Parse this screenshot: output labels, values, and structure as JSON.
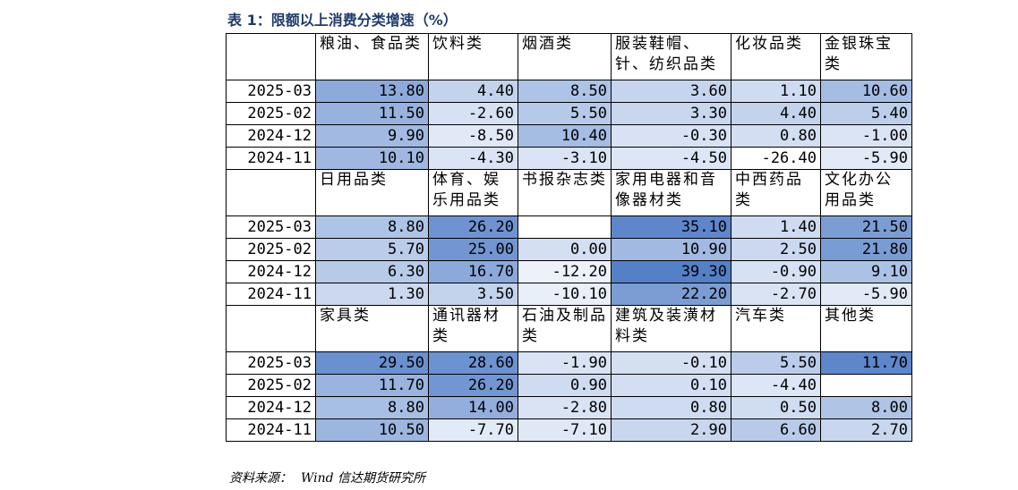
{
  "title": "表 1：限额以上消费分类增速（%）",
  "source": {
    "label": "资料来源：",
    "name": "Wind 信达期货研究所"
  },
  "groups": [
    {
      "headers": [
        "粮油、食品类",
        "饮料类",
        "烟酒类",
        "服装鞋帽、针、纺织品类",
        "化妆品类",
        "金银珠宝类"
      ],
      "rows": [
        {
          "label": "2025-03",
          "values": [
            "13.80",
            "4.40",
            "8.50",
            "3.60",
            "1.10",
            "10.60"
          ]
        },
        {
          "label": "2025-02",
          "values": [
            "11.50",
            "-2.60",
            "5.50",
            "3.30",
            "4.40",
            "5.40"
          ]
        },
        {
          "label": "2024-12",
          "values": [
            "9.90",
            "-8.50",
            "10.40",
            "-0.30",
            "0.80",
            "-1.00"
          ]
        },
        {
          "label": "2024-11",
          "values": [
            "10.10",
            "-4.30",
            "-3.10",
            "-4.50",
            "-26.40",
            "-5.90"
          ]
        }
      ],
      "colors": [
        [
          "#8eaadb",
          "#c4d3ec",
          "#aec4e6",
          "#c6d5ed",
          "#cfdbf0",
          "#a5bce3"
        ],
        [
          "#98b2de",
          "#d6e1f3",
          "#b6c9e8",
          "#c8d6ee",
          "#c4d3ec",
          "#bccee9"
        ],
        [
          "#a2bae2",
          "#e1e9f7",
          "#a5bce3",
          "#d8e2f4",
          "#d3def2",
          "#dbe4f5"
        ],
        [
          "#a0b8e1",
          "#dbe4f5",
          "#dbe4f5",
          "#dde6f6",
          "#ffffff",
          "#e2eaf7"
        ]
      ]
    },
    {
      "headers": [
        "日用品类",
        "体育、娱乐用品类",
        "书报杂志类",
        "家用电器和音像器材类",
        "中西药品类",
        "文化办公用品类"
      ],
      "rows": [
        {
          "label": "2025-03",
          "values": [
            "8.80",
            "26.20",
            "",
            "35.10",
            "1.40",
            "21.50"
          ]
        },
        {
          "label": "2025-02",
          "values": [
            "5.70",
            "25.00",
            "0.00",
            "10.90",
            "2.50",
            "21.80"
          ]
        },
        {
          "label": "2024-12",
          "values": [
            "6.30",
            "16.70",
            "-12.20",
            "39.30",
            "-0.90",
            "9.10"
          ]
        },
        {
          "label": "2024-11",
          "values": [
            "1.30",
            "3.50",
            "-10.10",
            "22.20",
            "-2.70",
            "-5.90"
          ]
        }
      ],
      "colors": [
        [
          "#aec4e6",
          "#6f93d0",
          "#ffffff",
          "#5f86cb",
          "#cfdbf0",
          "#7c9dd4"
        ],
        [
          "#bacce9",
          "#7296d1",
          "#d4dff2",
          "#a2bae2",
          "#cbd8ef",
          "#7a9cd4"
        ],
        [
          "#b7cae8",
          "#8ca9db",
          "#ecf1fa",
          "#5480c8",
          "#d6e1f3",
          "#acc2e5"
        ],
        [
          "#cbd8ef",
          "#c4d3ec",
          "#e9eff9",
          "#7b9dd4",
          "#d9e3f4",
          "#e2eaf7"
        ]
      ]
    },
    {
      "headers": [
        "家具类",
        "通讯器材类",
        "石油及制品类",
        "建筑及装潢材料类",
        "汽车类",
        "其他类"
      ],
      "rows": [
        {
          "label": "2025-03",
          "values": [
            "29.50",
            "28.60",
            "-1.90",
            "-0.10",
            "5.50",
            "11.70"
          ]
        },
        {
          "label": "2025-02",
          "values": [
            "11.70",
            "26.20",
            "0.90",
            "0.10",
            "-4.40",
            ""
          ]
        },
        {
          "label": "2024-12",
          "values": [
            "8.80",
            "14.00",
            "-2.80",
            "0.80",
            "0.50",
            "8.00"
          ]
        },
        {
          "label": "2024-11",
          "values": [
            "10.50",
            "-7.70",
            "-7.10",
            "2.90",
            "6.60",
            "2.70"
          ]
        }
      ],
      "colors": [
        [
          "#6a90cf",
          "#6d92d0",
          "#d9e3f4",
          "#d4dff2",
          "#bacce9",
          "#5e86cb"
        ],
        [
          "#9ab4df",
          "#7296d1",
          "#cfdbf0",
          "#d3def2",
          "#dde6f6",
          "#ffffff"
        ],
        [
          "#a8bfe4",
          "#93aedd",
          "#dae3f4",
          "#cfdbf0",
          "#d0dcf0",
          "#b0c5e6"
        ],
        [
          "#9db6e0",
          "#e2eaf7",
          "#e0e8f6",
          "#c8d6ee",
          "#b8cae8",
          "#c8d6ee"
        ]
      ]
    }
  ]
}
